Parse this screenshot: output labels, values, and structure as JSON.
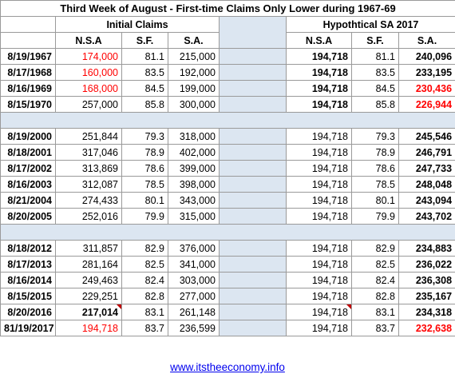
{
  "title": "Third Week of August - First-time Claims Only Lower during 1967-69",
  "group_initial": "Initial Claims",
  "group_hypothetical": "Hypothtical SA 2017",
  "headers": {
    "nsa": "N.S.A",
    "sf": "S.F.",
    "sa": "S.A."
  },
  "groups": [
    {
      "rows": [
        {
          "date": "8/19/1967",
          "nsa": "174,000",
          "sf": "81.1",
          "sa": "215,000",
          "hnsa": "194,718",
          "hsf": "81.1",
          "hsa": "240,096",
          "nsa_red": true,
          "hsa_red": false
        },
        {
          "date": "8/17/1968",
          "nsa": "160,000",
          "sf": "83.5",
          "sa": "192,000",
          "hnsa": "194,718",
          "hsf": "83.5",
          "hsa": "233,195",
          "nsa_red": true,
          "hsa_red": false
        },
        {
          "date": "8/16/1969",
          "nsa": "168,000",
          "sf": "84.5",
          "sa": "199,000",
          "hnsa": "194,718",
          "hsf": "84.5",
          "hsa": "230,436",
          "nsa_red": true,
          "hsa_red": true
        },
        {
          "date": "8/15/1970",
          "nsa": "257,000",
          "sf": "85.8",
          "sa": "300,000",
          "hnsa": "194,718",
          "hsf": "85.8",
          "hsa": "226,944",
          "nsa_red": false,
          "hsa_red": true
        }
      ]
    },
    {
      "rows": [
        {
          "date": "8/19/2000",
          "nsa": "251,844",
          "sf": "79.3",
          "sa": "318,000",
          "hnsa": "194,718",
          "hsf": "79.3",
          "hsa": "245,546",
          "nsa_red": false,
          "hsa_red": false
        },
        {
          "date": "8/18/2001",
          "nsa": "317,046",
          "sf": "78.9",
          "sa": "402,000",
          "hnsa": "194,718",
          "hsf": "78.9",
          "hsa": "246,791",
          "nsa_red": false,
          "hsa_red": false
        },
        {
          "date": "8/17/2002",
          "nsa": "313,869",
          "sf": "78.6",
          "sa": "399,000",
          "hnsa": "194,718",
          "hsf": "78.6",
          "hsa": "247,733",
          "nsa_red": false,
          "hsa_red": false
        },
        {
          "date": "8/16/2003",
          "nsa": "312,087",
          "sf": "78.5",
          "sa": "398,000",
          "hnsa": "194,718",
          "hsf": "78.5",
          "hsa": "248,048",
          "nsa_red": false,
          "hsa_red": false
        },
        {
          "date": "8/21/2004",
          "nsa": "274,433",
          "sf": "80.1",
          "sa": "343,000",
          "hnsa": "194,718",
          "hsf": "80.1",
          "hsa": "243,094",
          "nsa_red": false,
          "hsa_red": false
        },
        {
          "date": "8/20/2005",
          "nsa": "252,016",
          "sf": "79.9",
          "sa": "315,000",
          "hnsa": "194,718",
          "hsf": "79.9",
          "hsa": "243,702",
          "nsa_red": false,
          "hsa_red": false
        }
      ]
    },
    {
      "rows": [
        {
          "date": "8/18/2012",
          "nsa": "311,857",
          "sf": "82.9",
          "sa": "376,000",
          "hnsa": "194,718",
          "hsf": "82.9",
          "hsa": "234,883",
          "nsa_red": false,
          "hsa_red": false
        },
        {
          "date": "8/17/2013",
          "nsa": "281,164",
          "sf": "82.5",
          "sa": "341,000",
          "hnsa": "194,718",
          "hsf": "82.5",
          "hsa": "236,022",
          "nsa_red": false,
          "hsa_red": false
        },
        {
          "date": "8/16/2014",
          "nsa": "249,463",
          "sf": "82.4",
          "sa": "303,000",
          "hnsa": "194,718",
          "hsf": "82.4",
          "hsa": "236,308",
          "nsa_red": false,
          "hsa_red": false
        },
        {
          "date": "8/15/2015",
          "nsa": "229,251",
          "sf": "82.8",
          "sa": "277,000",
          "hnsa": "194,718",
          "hsf": "82.8",
          "hsa": "235,167",
          "nsa_red": false,
          "hsa_red": false
        },
        {
          "date": "8/20/2016",
          "nsa": "217,014",
          "sf": "83.1",
          "sa": "261,148",
          "hnsa": "194,718",
          "hsf": "83.1",
          "hsa": "234,318",
          "nsa_red": false,
          "hsa_red": false,
          "nsa_bold": true,
          "note": true
        },
        {
          "date": "81/19/2017",
          "nsa": "194,718",
          "sf": "83.7",
          "sa": "236,599",
          "hnsa": "194,718",
          "hsf": "83.7",
          "hsa": "232,638",
          "nsa_red": true,
          "hsa_red": true
        }
      ]
    }
  ],
  "footer_link": "www.itstheeconomy.info",
  "colors": {
    "accent_red": "#ff0000",
    "separator_blue": "#dce6f1",
    "link_blue": "#0000ee"
  }
}
